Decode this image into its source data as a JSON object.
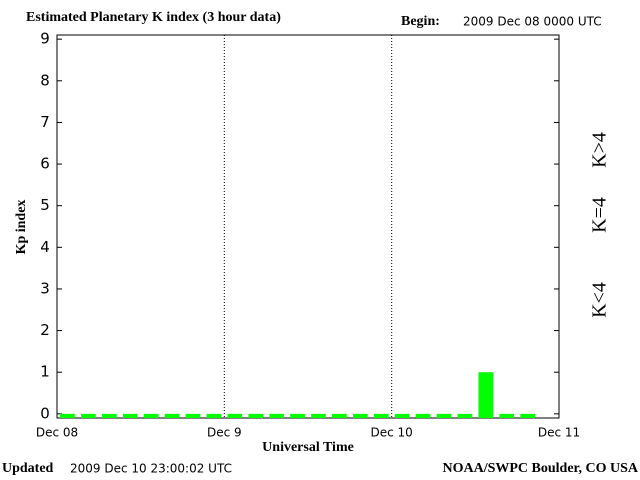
{
  "chart_data": {
    "type": "bar",
    "title": "Estimated Planetary K index (3 hour data)",
    "begin_label": "Begin:",
    "begin": "2009 Dec 08 0000 UTC",
    "xlabel": "Universal Time",
    "ylabel": "Kp index",
    "updated_label": "Updated",
    "updated": "2009 Dec 10 23:00:02 UTC",
    "credit": "NOAA/SWPC Boulder, CO USA",
    "xticks": [
      "Dec 08",
      "Dec 9",
      "Dec 10",
      "Dec 11"
    ],
    "values": [
      0,
      0,
      0,
      0,
      0,
      0,
      0,
      0,
      0,
      0,
      0,
      0,
      0,
      0,
      0,
      0,
      0,
      0,
      0,
      0,
      1,
      0,
      0,
      null
    ],
    "color": "#00ff00",
    "ylim": [
      -0.1,
      9.1
    ],
    "yticks": [
      0,
      1,
      2,
      3,
      4,
      5,
      6,
      7,
      8,
      9
    ],
    "legend": [
      {
        "name": "K<4",
        "color": "#33ee33"
      },
      {
        "name": "K=4",
        "color": "#ffcc00"
      },
      {
        "name": "K>4",
        "color": "#ff3300"
      }
    ]
  }
}
